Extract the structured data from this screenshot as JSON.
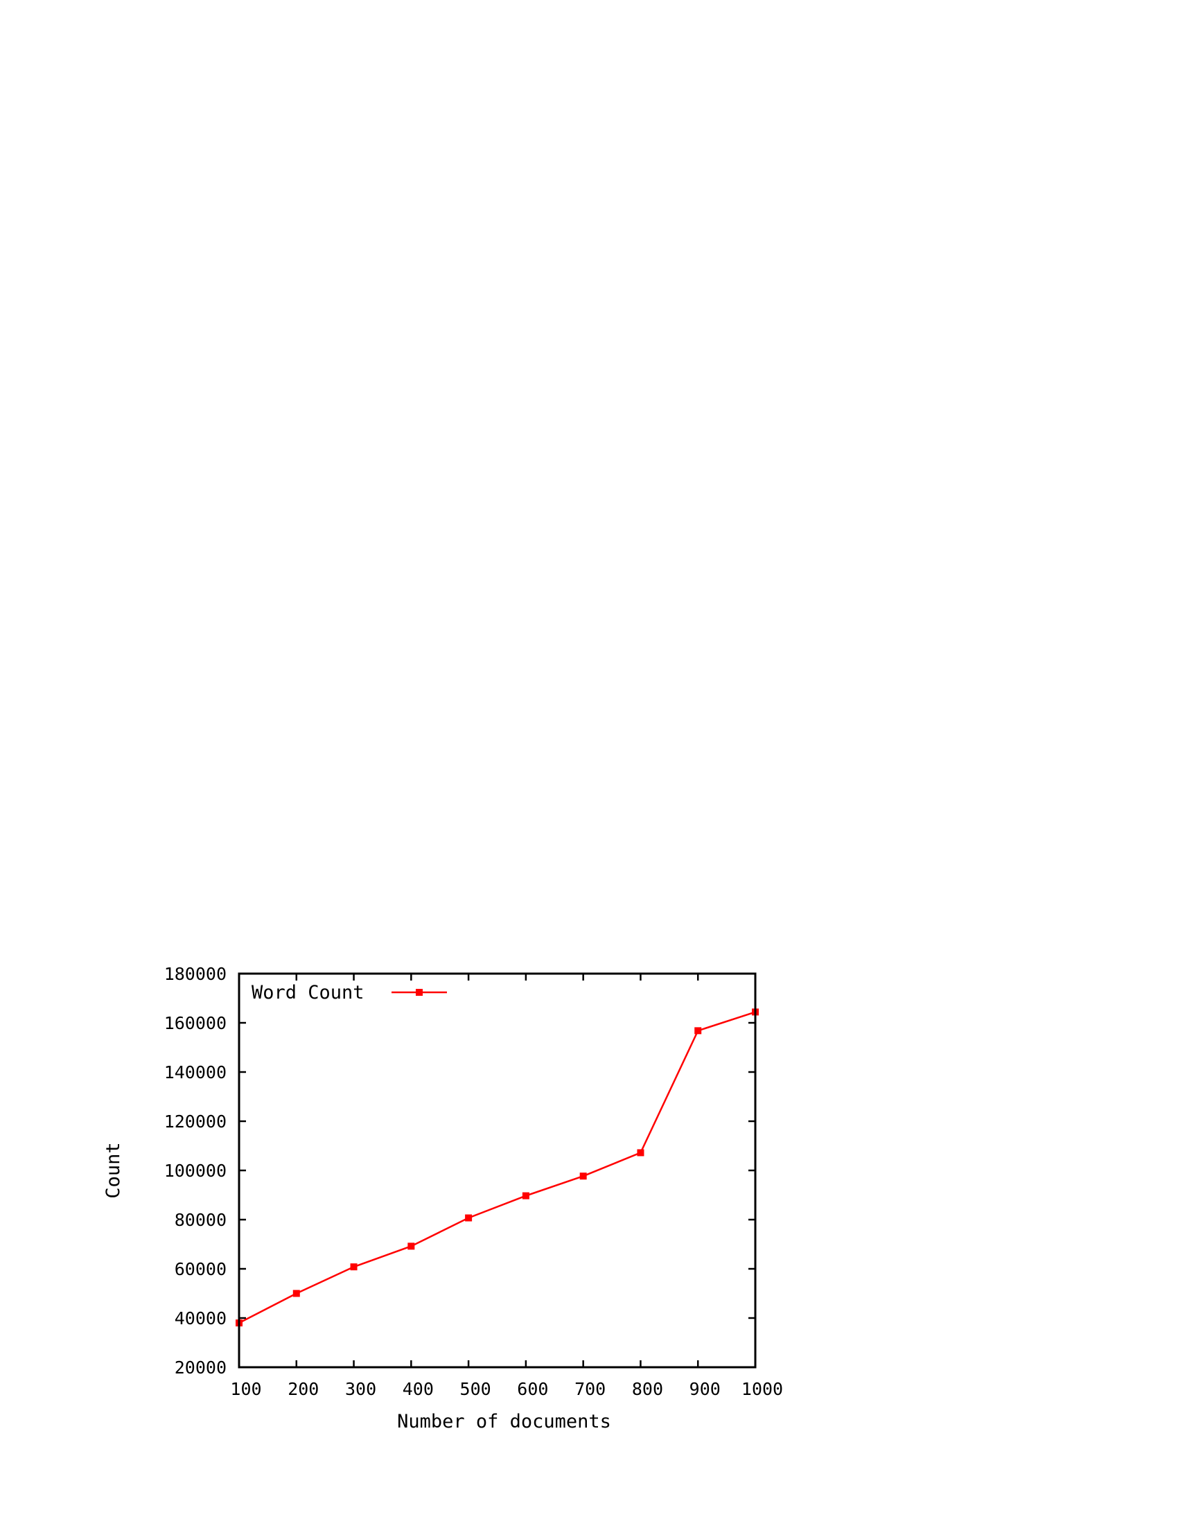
{
  "chart_data": {
    "type": "line",
    "title": "",
    "xlabel": "Number of documents",
    "ylabel": "Count",
    "xlim": [
      100,
      1000
    ],
    "ylim": [
      20000,
      180000
    ],
    "x_ticks": [
      "100",
      "200",
      "300",
      "400",
      "500",
      "600",
      "700",
      "800",
      "900",
      "1000"
    ],
    "y_ticks": [
      "20000",
      "40000",
      "60000",
      "80000",
      "100000",
      "120000",
      "140000",
      "160000",
      "180000"
    ],
    "grid": false,
    "legend_position": "top-left",
    "series": [
      {
        "name": "Word Count",
        "color": "#ff0000",
        "marker": "square",
        "x": [
          100,
          200,
          300,
          400,
          500,
          600,
          700,
          800,
          900,
          1000
        ],
        "y": [
          38000,
          50000,
          60800,
          69200,
          80700,
          89700,
          97700,
          107200,
          156800,
          164400
        ]
      }
    ]
  }
}
